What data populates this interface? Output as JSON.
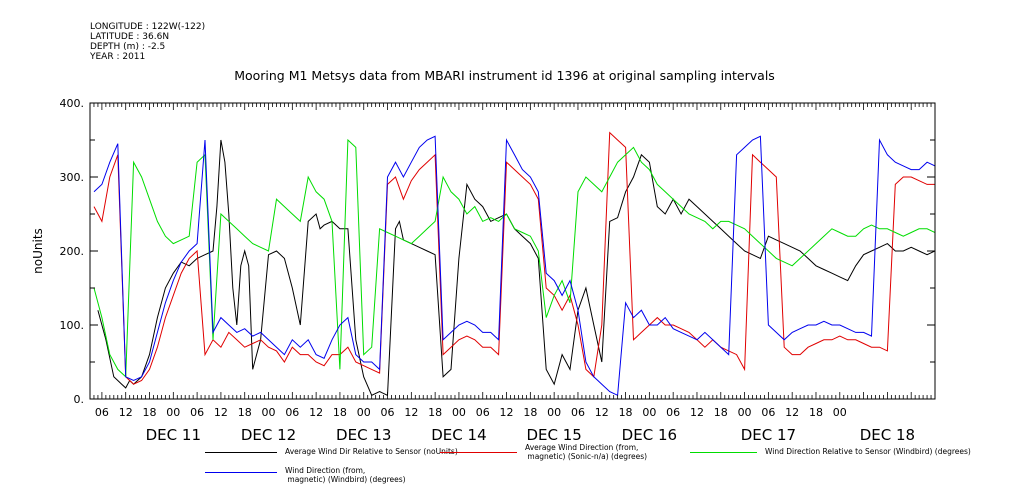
{
  "meta": {
    "longitude": "LONGITUDE : 122W(-122)",
    "latitude": "LATITUDE : 36.6N",
    "depth": "DEPTH (m) : -2.5",
    "year": "YEAR : 2011"
  },
  "colors": {
    "black": "#000000",
    "red": "#e00000",
    "green": "#00dd00",
    "blue": "#0000ee"
  },
  "chart_data": {
    "type": "line",
    "title": "Mooring M1 Metsys data from MBARI instrument id 1396 at original sampling intervals",
    "ylabel": "noUnits",
    "xlabel": "",
    "ylim": [
      0,
      400
    ],
    "yticks": [
      "0.",
      "100.",
      "200.",
      "300.",
      "400."
    ],
    "xrange_hours": [
      -9,
      204
    ],
    "x_hour_ticks": [
      "06",
      "12",
      "18",
      "00",
      "06",
      "12",
      "18",
      "00",
      "06",
      "12",
      "18",
      "00",
      "06",
      "12",
      "18",
      "00",
      "06",
      "12",
      "18",
      "00",
      "06",
      "12",
      "18",
      "00",
      "06",
      "12",
      "18",
      "00",
      "06",
      "12",
      "18",
      "00"
    ],
    "x_day_labels": [
      "DEC 11",
      "DEC 12",
      "DEC 13",
      "DEC 14",
      "DEC 15",
      "DEC 16",
      "DEC 17",
      "DEC 18"
    ],
    "x_units": "hours since 2011-12-11 00:00",
    "series": [
      {
        "name": "Average Wind Dir Relative to Sensor (noUnits)",
        "color": "#000000",
        "x": [
          -7,
          -5,
          -3,
          -1,
          0,
          1,
          2,
          4,
          6,
          8,
          10,
          12,
          14,
          16,
          18,
          20,
          22,
          23,
          24,
          25,
          26,
          27,
          28,
          29,
          30,
          31,
          32,
          33,
          34,
          36,
          38,
          40,
          42,
          44,
          46,
          48,
          49,
          50,
          52,
          54,
          56,
          58,
          60,
          62,
          64,
          66,
          68,
          69,
          70,
          72,
          74,
          76,
          78,
          80,
          82,
          84,
          86,
          88,
          90,
          92,
          94,
          96,
          98,
          100,
          102,
          104,
          106,
          108,
          110,
          112,
          114,
          116,
          118,
          120,
          122,
          124,
          126,
          128,
          130,
          132,
          134,
          136,
          138,
          140,
          142,
          144,
          146,
          148,
          150,
          152,
          154,
          156,
          158,
          160,
          162,
          164,
          166,
          168,
          170,
          172,
          174,
          176,
          178,
          180,
          182,
          184,
          186,
          188,
          190,
          192,
          194,
          196,
          198,
          200,
          202,
          204
        ],
        "y": [
          120,
          80,
          30,
          20,
          15,
          25,
          20,
          30,
          60,
          110,
          150,
          170,
          185,
          180,
          190,
          195,
          200,
          260,
          350,
          320,
          250,
          150,
          100,
          180,
          200,
          180,
          40,
          60,
          80,
          195,
          200,
          190,
          150,
          100,
          240,
          250,
          230,
          235,
          240,
          230,
          230,
          80,
          30,
          5,
          10,
          5,
          230,
          240,
          215,
          210,
          205,
          200,
          195,
          30,
          40,
          190,
          290,
          270,
          260,
          240,
          245,
          250,
          230,
          220,
          210,
          190,
          40,
          20,
          60,
          40,
          120,
          150,
          100,
          50,
          240,
          245,
          280,
          300,
          330,
          320,
          260,
          250,
          270,
          250,
          270,
          260,
          250,
          240,
          230,
          220,
          210,
          200,
          195,
          190,
          220,
          215,
          210,
          205,
          200,
          190,
          180,
          175,
          170,
          165,
          160,
          180,
          195,
          200,
          205,
          210,
          200,
          200,
          205,
          200,
          195,
          200
        ]
      },
      {
        "name": "Average Wind Direction (from,\n magnetic) (Sonic-n/a) (degrees)",
        "color": "#e00000",
        "x": [
          -8,
          -6,
          -4,
          -2,
          0,
          2,
          4,
          6,
          8,
          10,
          12,
          14,
          16,
          18,
          20,
          22,
          24,
          26,
          28,
          30,
          32,
          34,
          36,
          38,
          40,
          42,
          44,
          46,
          48,
          50,
          52,
          54,
          56,
          58,
          60,
          62,
          64,
          66,
          68,
          70,
          72,
          74,
          76,
          78,
          80,
          82,
          84,
          86,
          88,
          90,
          92,
          94,
          96,
          98,
          100,
          102,
          104,
          106,
          108,
          110,
          112,
          114,
          116,
          118,
          120,
          122,
          124,
          126,
          128,
          130,
          132,
          134,
          136,
          138,
          140,
          142,
          144,
          146,
          148,
          150,
          152,
          154,
          156,
          158,
          160,
          162,
          164,
          166,
          168,
          170,
          172,
          174,
          176,
          178,
          180,
          182,
          184,
          186,
          188,
          190,
          192,
          194,
          196,
          198,
          200,
          202,
          204
        ],
        "y": [
          260,
          240,
          300,
          330,
          30,
          20,
          25,
          40,
          70,
          110,
          140,
          170,
          190,
          200,
          60,
          80,
          70,
          90,
          80,
          70,
          75,
          80,
          70,
          65,
          50,
          70,
          60,
          60,
          50,
          45,
          60,
          60,
          70,
          50,
          45,
          40,
          35,
          290,
          300,
          270,
          295,
          310,
          320,
          330,
          60,
          70,
          80,
          85,
          80,
          70,
          70,
          60,
          320,
          310,
          300,
          290,
          270,
          150,
          140,
          120,
          140,
          100,
          40,
          30,
          100,
          360,
          350,
          340,
          80,
          90,
          100,
          110,
          100,
          100,
          95,
          90,
          80,
          70,
          80,
          70,
          65,
          60,
          40,
          330,
          320,
          310,
          300,
          70,
          60,
          60,
          70,
          75,
          80,
          80,
          85,
          80,
          80,
          75,
          70,
          70,
          65,
          290,
          300,
          300,
          295,
          290,
          290
        ]
      },
      {
        "name": "Wind Direction Relative to Sensor (Windbird) (degrees)",
        "color": "#00dd00",
        "x": [
          -8,
          -6,
          -4,
          -2,
          0,
          2,
          4,
          6,
          8,
          10,
          12,
          14,
          16,
          18,
          20,
          22,
          24,
          26,
          28,
          30,
          32,
          34,
          36,
          38,
          40,
          42,
          44,
          46,
          48,
          50,
          52,
          54,
          56,
          58,
          60,
          62,
          64,
          66,
          68,
          70,
          72,
          74,
          76,
          78,
          80,
          82,
          84,
          86,
          88,
          90,
          92,
          94,
          96,
          98,
          100,
          102,
          104,
          106,
          108,
          110,
          112,
          114,
          116,
          118,
          120,
          122,
          124,
          126,
          128,
          130,
          132,
          134,
          136,
          138,
          140,
          142,
          144,
          146,
          148,
          150,
          152,
          154,
          156,
          158,
          160,
          162,
          164,
          166,
          168,
          170,
          172,
          174,
          176,
          178,
          180,
          182,
          184,
          186,
          188,
          190,
          192,
          194,
          196,
          198,
          200,
          202,
          204
        ],
        "y": [
          150,
          110,
          60,
          40,
          30,
          320,
          300,
          270,
          240,
          220,
          210,
          215,
          220,
          320,
          330,
          80,
          250,
          240,
          230,
          220,
          210,
          205,
          200,
          270,
          260,
          250,
          240,
          300,
          280,
          270,
          240,
          40,
          350,
          340,
          60,
          70,
          230,
          225,
          220,
          215,
          210,
          220,
          230,
          240,
          300,
          280,
          270,
          250,
          260,
          240,
          245,
          240,
          250,
          230,
          225,
          220,
          200,
          110,
          140,
          160,
          130,
          280,
          300,
          290,
          280,
          300,
          320,
          330,
          340,
          320,
          310,
          290,
          280,
          270,
          260,
          250,
          245,
          240,
          230,
          240,
          240,
          235,
          230,
          220,
          210,
          200,
          190,
          185,
          180,
          190,
          200,
          210,
          220,
          230,
          225,
          220,
          220,
          230,
          235,
          230,
          230,
          225,
          220,
          225,
          230,
          230,
          225
        ]
      },
      {
        "name": "Wind Direction (from,\n magnetic) (Windbird) (degrees)",
        "color": "#0000ee",
        "x": [
          -8,
          -6,
          -4,
          -2,
          0,
          2,
          4,
          6,
          8,
          10,
          12,
          14,
          16,
          18,
          20,
          22,
          24,
          26,
          28,
          30,
          32,
          34,
          36,
          38,
          40,
          42,
          44,
          46,
          48,
          50,
          52,
          54,
          56,
          58,
          60,
          62,
          64,
          66,
          68,
          70,
          72,
          74,
          76,
          78,
          80,
          82,
          84,
          86,
          88,
          90,
          92,
          94,
          96,
          98,
          100,
          102,
          104,
          106,
          108,
          110,
          112,
          114,
          116,
          118,
          120,
          122,
          124,
          126,
          128,
          130,
          132,
          134,
          136,
          138,
          140,
          142,
          144,
          146,
          148,
          150,
          152,
          154,
          156,
          158,
          160,
          162,
          164,
          166,
          168,
          170,
          172,
          174,
          176,
          178,
          180,
          182,
          184,
          186,
          188,
          190,
          192,
          194,
          196,
          198,
          200,
          202,
          204
        ],
        "y": [
          280,
          290,
          320,
          345,
          30,
          25,
          30,
          50,
          90,
          130,
          160,
          185,
          200,
          210,
          350,
          90,
          110,
          100,
          90,
          95,
          85,
          90,
          80,
          70,
          60,
          80,
          70,
          80,
          60,
          55,
          80,
          100,
          110,
          60,
          50,
          50,
          40,
          300,
          320,
          300,
          320,
          340,
          350,
          355,
          80,
          90,
          100,
          105,
          100,
          90,
          90,
          80,
          350,
          330,
          310,
          300,
          280,
          170,
          160,
          140,
          160,
          120,
          50,
          30,
          20,
          10,
          5,
          130,
          110,
          120,
          100,
          100,
          110,
          95,
          90,
          85,
          80,
          90,
          80,
          70,
          60,
          330,
          340,
          350,
          355,
          100,
          90,
          80,
          90,
          95,
          100,
          100,
          105,
          100,
          100,
          95,
          90,
          90,
          85,
          350,
          330,
          320,
          315,
          310,
          310,
          320,
          315
        ]
      }
    ]
  }
}
